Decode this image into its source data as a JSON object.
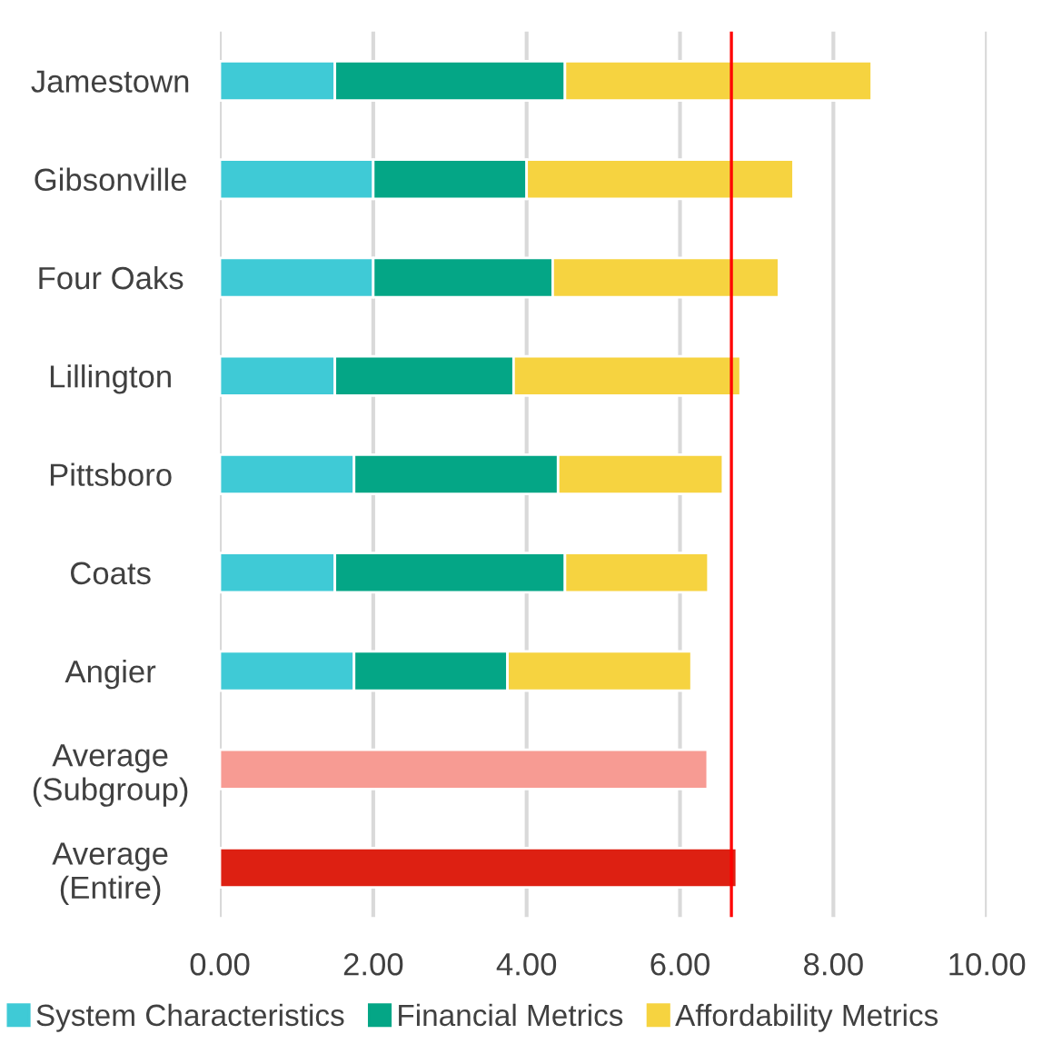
{
  "chart_data": {
    "type": "bar",
    "orientation": "horizontal",
    "stacked": true,
    "categories": [
      "Jamestown",
      "Gibsonville",
      "Four Oaks",
      "Lillington",
      "Pittsboro",
      "Coats",
      "Angier",
      "Average\n(Subgroup)",
      "Average\n(Entire)"
    ],
    "series": [
      {
        "name": "System Characteristics",
        "color": "#3fcad6",
        "values": [
          1.5,
          2.0,
          2.0,
          1.5,
          1.75,
          1.5,
          1.75,
          null,
          null
        ]
      },
      {
        "name": "Financial Metrics",
        "color": "#04a686",
        "values": [
          3.0,
          2.0,
          2.34,
          2.33,
          2.66,
          3.0,
          2.0,
          null,
          null
        ]
      },
      {
        "name": "Affordability Metrics",
        "color": "#f6d340",
        "values": [
          4.0,
          3.48,
          2.95,
          2.96,
          2.15,
          1.87,
          2.4,
          null,
          null
        ]
      },
      {
        "colors": [
          null,
          null,
          null,
          null,
          null,
          null,
          null,
          "#f79b93",
          "#dd2012"
        ],
        "values": [
          null,
          null,
          null,
          null,
          null,
          null,
          null,
          6.36,
          6.74
        ]
      }
    ],
    "xlim": [
      0,
      10
    ],
    "xticks": [
      {
        "value": 0,
        "label": "0.00"
      },
      {
        "value": 2,
        "label": "2.00"
      },
      {
        "value": 4,
        "label": "4.00"
      },
      {
        "value": 6,
        "label": "6.00"
      },
      {
        "value": 8,
        "label": "8.00"
      },
      {
        "value": 10,
        "label": "10.00"
      }
    ],
    "grid": "x",
    "legend": "bottom",
    "ref_lines": [
      {
        "axis": "x",
        "value": 6.67,
        "color": "#ff0000",
        "line_style": "solid"
      }
    ]
  }
}
